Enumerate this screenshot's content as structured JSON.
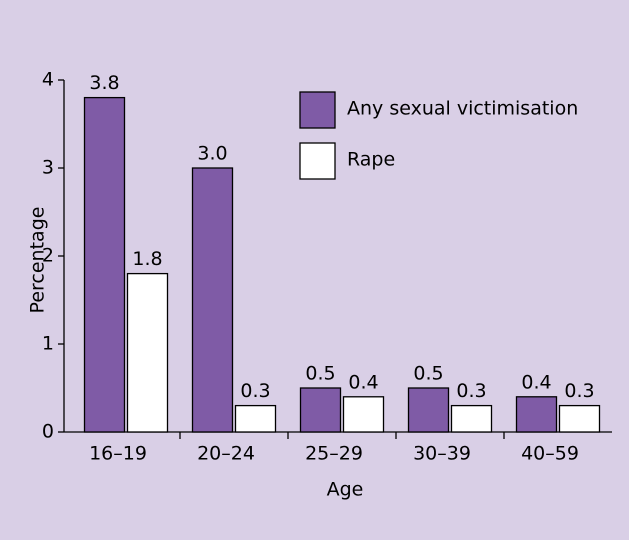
{
  "chart_data": {
    "type": "bar",
    "categories": [
      "16–19",
      "20–24",
      "25–29",
      "30–39",
      "40–59"
    ],
    "series": [
      {
        "name": "Any sexual victimisation",
        "color": "#7f5ba6",
        "values": [
          3.8,
          3.0,
          0.5,
          0.5,
          0.4
        ],
        "value_labels": [
          "3.8",
          "3.0",
          "0.5",
          "0.5",
          "0.4"
        ]
      },
      {
        "name": "Rape",
        "color": "#ffffff",
        "values": [
          1.8,
          0.3,
          0.4,
          0.3,
          0.3
        ],
        "value_labels": [
          "1.8",
          "0.3",
          "0.4",
          "0.3",
          "0.3"
        ]
      }
    ],
    "x_label": "Age",
    "y_label": "Percentage",
    "ylim": [
      0,
      4
    ],
    "yticks": [
      0,
      1,
      2,
      3,
      4
    ],
    "legend": "top-right"
  }
}
